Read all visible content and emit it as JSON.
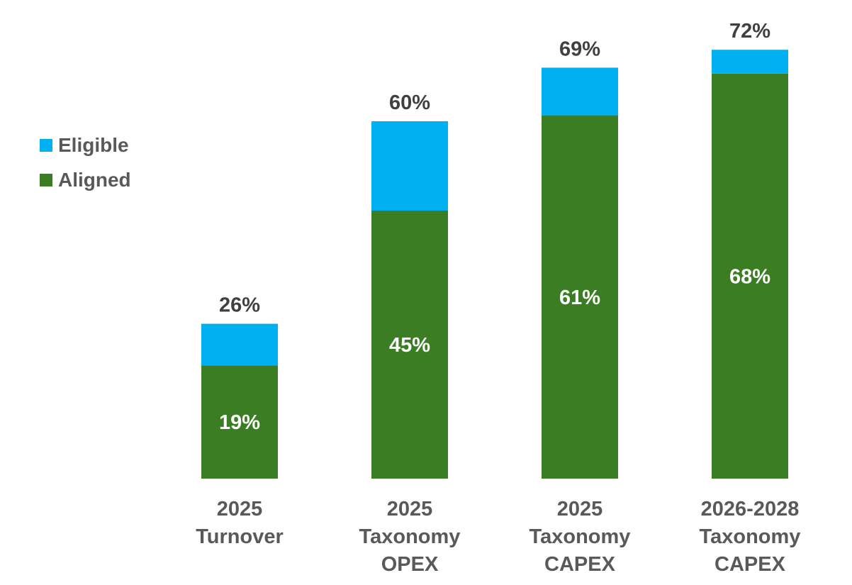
{
  "chart_data": {
    "type": "bar",
    "stacked": true,
    "categories": [
      [
        "2025",
        "Turnover"
      ],
      [
        "2025",
        "Taxonomy",
        "OPEX"
      ],
      [
        "2025",
        "Taxonomy",
        "CAPEX"
      ],
      [
        "2026-2028",
        "Taxonomy",
        "CAPEX"
      ]
    ],
    "series": [
      {
        "name": "Aligned",
        "values": [
          19,
          45,
          61,
          68
        ],
        "color": "#3b7d23"
      },
      {
        "name": "Eligible",
        "values": [
          7,
          15,
          8,
          4
        ],
        "color": "#00b0f0"
      }
    ],
    "totals": [
      26,
      60,
      69,
      72
    ],
    "aligned_labels": [
      "19%",
      "45%",
      "61%",
      "68%"
    ],
    "total_labels": [
      "26%",
      "60%",
      "69%",
      "72%"
    ],
    "ylim": [
      0,
      100
    ],
    "grid": false,
    "legend": {
      "position": "left",
      "items": [
        {
          "name": "Eligible",
          "color": "#00b0f0"
        },
        {
          "name": "Aligned",
          "color": "#3b7d23"
        }
      ]
    }
  }
}
